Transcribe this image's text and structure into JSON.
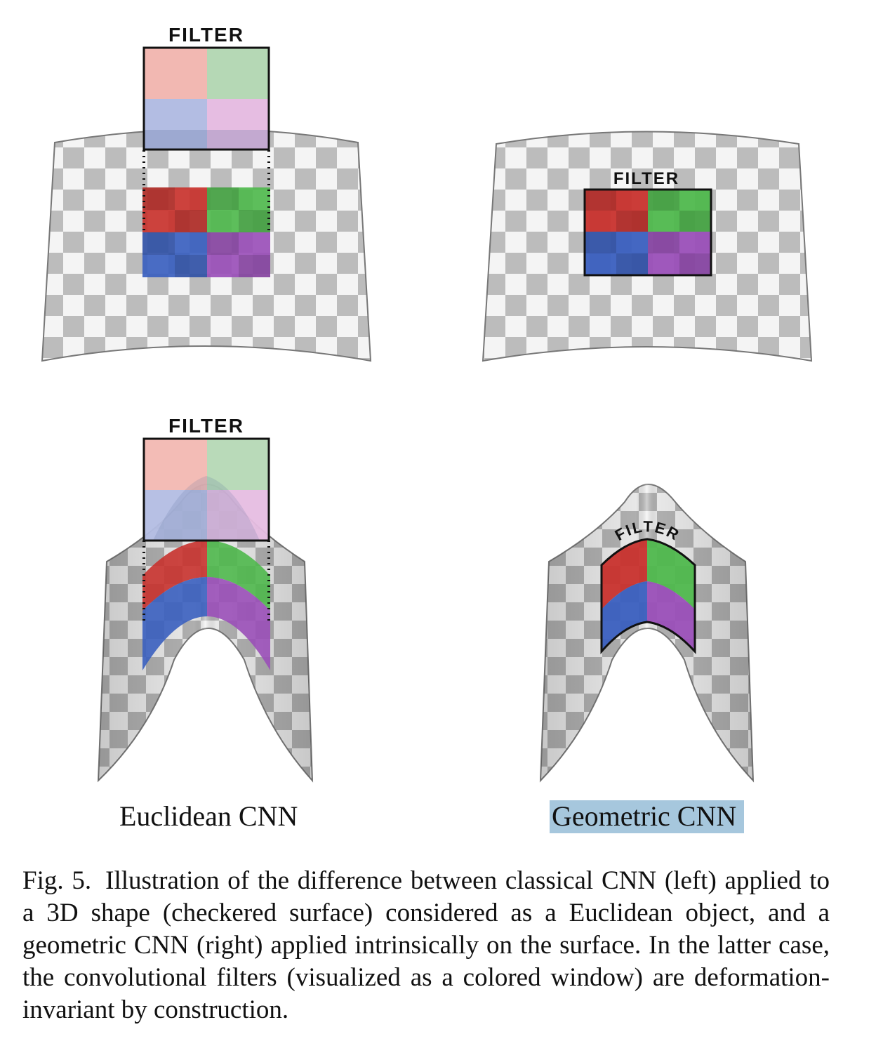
{
  "figure": {
    "filter_label": "FILTER",
    "panels": [
      {
        "position": "top-left",
        "surface": "gently curved checkered sheet",
        "filter": "euclidean (projected window)"
      },
      {
        "position": "top-right",
        "surface": "gently curved checkered sheet",
        "filter": "geometric (on surface)"
      },
      {
        "position": "bottom-left",
        "surface": "strongly bent checkered sheet",
        "filter": "euclidean (projected window)"
      },
      {
        "position": "bottom-right",
        "surface": "strongly bent checkered sheet",
        "filter": "geometric (on surface)"
      }
    ],
    "labels": {
      "left": "Euclidean CNN",
      "right": "Geometric CNN"
    },
    "highlight_color": "#a6c7dd",
    "filter_colors": {
      "red": "#c8322d",
      "green": "#4fb84d",
      "blue": "#3a5fbf",
      "purple": "#9a4fb8"
    }
  },
  "caption": {
    "number": "Fig. 5.",
    "text": "Illustration of the difference between classical CNN (left) applied to a 3D shape (checkered surface) considered as a Euclidean object, and a geometric CNN (right) applied intrinsically on the surface. In the latter case, the convolutional filters (visualized as a colored window) are deformation-invariant by construction."
  }
}
